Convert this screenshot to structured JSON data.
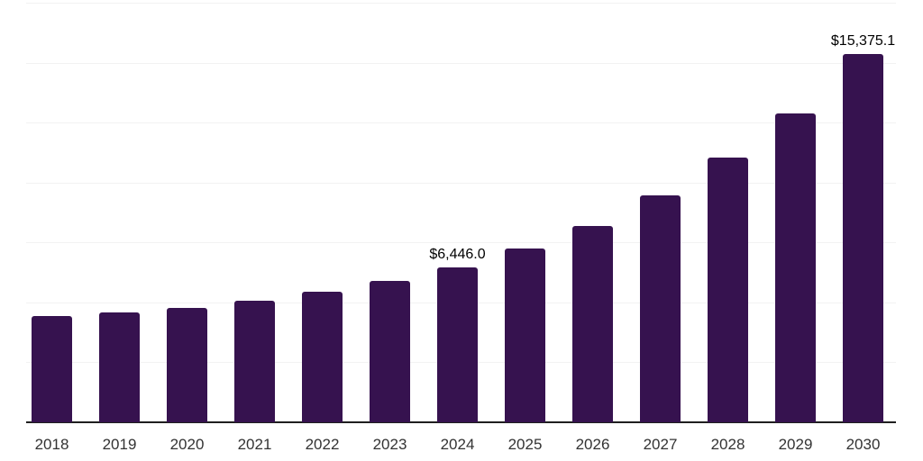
{
  "chart_data": {
    "type": "bar",
    "title": "",
    "xlabel": "",
    "ylabel": "",
    "categories": [
      "2018",
      "2019",
      "2020",
      "2021",
      "2022",
      "2023",
      "2024",
      "2025",
      "2026",
      "2027",
      "2028",
      "2029",
      "2030"
    ],
    "values": [
      4415,
      4580,
      4755,
      5070,
      5445,
      5880,
      6446.0,
      7230,
      8170,
      9460,
      11025,
      12890,
      15375.1
    ],
    "data_labels": [
      "",
      "",
      "",
      "",
      "",
      "",
      "$6,446.0",
      "",
      "",
      "",
      "",
      "",
      "$15,375.1"
    ],
    "ylim": [
      0,
      17500
    ],
    "ytick_step": 2500,
    "grid": "horizontal",
    "legend": false,
    "bar_color": "#36124F",
    "gridline_color": "#f2f2f2",
    "axis_line_color": "#1f1f1f",
    "tick_label_color": "#333333",
    "data_label_color": "#000000"
  }
}
